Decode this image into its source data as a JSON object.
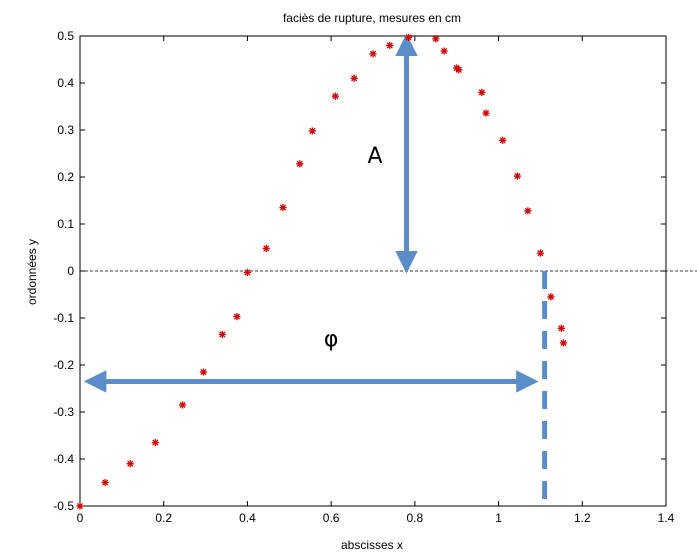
{
  "chart_data": {
    "type": "scatter",
    "title": "faciès de rupture, mesures en cm",
    "xlabel": "abscisses x",
    "ylabel": "ordonnées y",
    "xlim": [
      0,
      1.4
    ],
    "ylim": [
      -0.5,
      0.5
    ],
    "x_ticks": [
      "0",
      "0.2",
      "0.4",
      "0.6",
      "0.8",
      "1",
      "1.2",
      "1.4"
    ],
    "y_ticks": [
      "-0.5",
      "-0.4",
      "-0.3",
      "-0.2",
      "-0.1",
      "0",
      "0.1",
      "0.2",
      "0.3",
      "0.4",
      "0.5"
    ],
    "grid": false,
    "marker": "*",
    "marker_color": "#d40000",
    "points": [
      {
        "x": 0.0,
        "y": -0.5
      },
      {
        "x": 0.06,
        "y": -0.45
      },
      {
        "x": 0.12,
        "y": -0.41
      },
      {
        "x": 0.18,
        "y": -0.365
      },
      {
        "x": 0.245,
        "y": -0.285
      },
      {
        "x": 0.295,
        "y": -0.215
      },
      {
        "x": 0.34,
        "y": -0.135
      },
      {
        "x": 0.375,
        "y": -0.097
      },
      {
        "x": 0.4,
        "y": -0.003
      },
      {
        "x": 0.445,
        "y": 0.048
      },
      {
        "x": 0.485,
        "y": 0.135
      },
      {
        "x": 0.525,
        "y": 0.228
      },
      {
        "x": 0.555,
        "y": 0.298
      },
      {
        "x": 0.61,
        "y": 0.372
      },
      {
        "x": 0.655,
        "y": 0.41
      },
      {
        "x": 0.7,
        "y": 0.462
      },
      {
        "x": 0.74,
        "y": 0.48
      },
      {
        "x": 0.785,
        "y": 0.497
      },
      {
        "x": 0.85,
        "y": 0.494
      },
      {
        "x": 0.87,
        "y": 0.468
      },
      {
        "x": 0.9,
        "y": 0.432
      },
      {
        "x": 0.905,
        "y": 0.428
      },
      {
        "x": 0.96,
        "y": 0.38
      },
      {
        "x": 0.97,
        "y": 0.336
      },
      {
        "x": 1.01,
        "y": 0.278
      },
      {
        "x": 1.045,
        "y": 0.202
      },
      {
        "x": 1.07,
        "y": 0.128
      },
      {
        "x": 1.1,
        "y": 0.038
      },
      {
        "x": 1.125,
        "y": -0.055
      },
      {
        "x": 1.15,
        "y": -0.122
      },
      {
        "x": 1.155,
        "y": -0.153
      }
    ],
    "zero_line": {
      "y": 0,
      "style": "dashed",
      "color": "#000000"
    },
    "annotations": [
      {
        "label": "A",
        "kind": "double-arrow-vertical",
        "color": "#5b8ec9",
        "x": 0.78,
        "y_from": 0.0,
        "y_to": 0.5,
        "label_x": 0.705,
        "label_y": 0.23
      },
      {
        "label": "φ",
        "kind": "double-arrow-horizontal",
        "color": "#5b8ec9",
        "y": -0.235,
        "x_from": 0.02,
        "x_to": 1.085,
        "label_x": 0.6,
        "label_y": -0.16
      },
      {
        "label": "",
        "kind": "dashed-vertical-line",
        "color": "#5b8ec9",
        "x": 1.11,
        "y_from": 0.0,
        "y_to": -0.5
      }
    ]
  }
}
